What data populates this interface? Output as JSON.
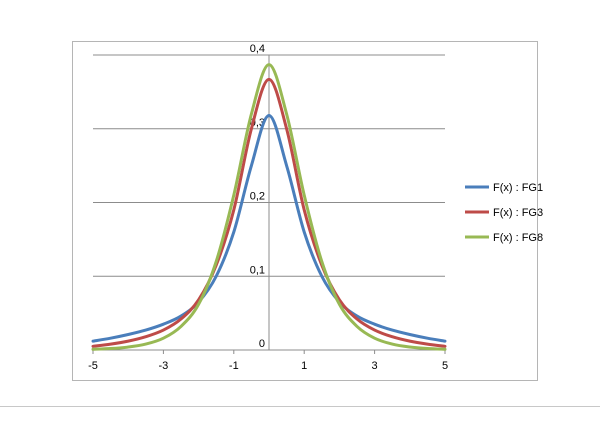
{
  "chart_data": {
    "type": "line",
    "title": "",
    "xlabel": "",
    "ylabel": "",
    "xlim": [
      -5,
      5
    ],
    "ylim": [
      0,
      0.4
    ],
    "x_ticks": [
      -5,
      -3,
      -1,
      1,
      3,
      5
    ],
    "x_tick_labels": [
      "-5",
      "-3",
      "-1",
      "1",
      "3",
      "5"
    ],
    "y_ticks": [
      0,
      0.1,
      0.2,
      0.3,
      0.4
    ],
    "y_tick_labels": [
      "0",
      "0,1",
      "0,2",
      "0,3",
      "0,4"
    ],
    "grid": "horizontal",
    "legend_position": "right",
    "x": [
      -5,
      -4.5,
      -4,
      -3.5,
      -3,
      -2.5,
      -2,
      -1.5,
      -1,
      -0.5,
      0,
      0.5,
      1,
      1.5,
      2,
      2.5,
      3,
      3.5,
      4,
      4.5,
      5
    ],
    "series": [
      {
        "name": "F(x) : FG1",
        "color": "#4a7ebb",
        "values": [
          0.012,
          0.016,
          0.021,
          0.027,
          0.035,
          0.046,
          0.065,
          0.1,
          0.16,
          0.25,
          0.318,
          0.25,
          0.16,
          0.1,
          0.065,
          0.046,
          0.035,
          0.027,
          0.021,
          0.016,
          0.012
        ]
      },
      {
        "name": "F(x) : FG3",
        "color": "#be4b48",
        "values": [
          0.005,
          0.008,
          0.012,
          0.018,
          0.027,
          0.042,
          0.068,
          0.115,
          0.19,
          0.3,
          0.367,
          0.3,
          0.19,
          0.115,
          0.068,
          0.042,
          0.027,
          0.018,
          0.012,
          0.008,
          0.005
        ]
      },
      {
        "name": "F(x) : FG8",
        "color": "#98b954",
        "values": [
          0.001,
          0.002,
          0.004,
          0.008,
          0.016,
          0.032,
          0.062,
          0.12,
          0.21,
          0.32,
          0.387,
          0.32,
          0.21,
          0.12,
          0.062,
          0.032,
          0.016,
          0.008,
          0.004,
          0.002,
          0.001
        ]
      }
    ]
  }
}
